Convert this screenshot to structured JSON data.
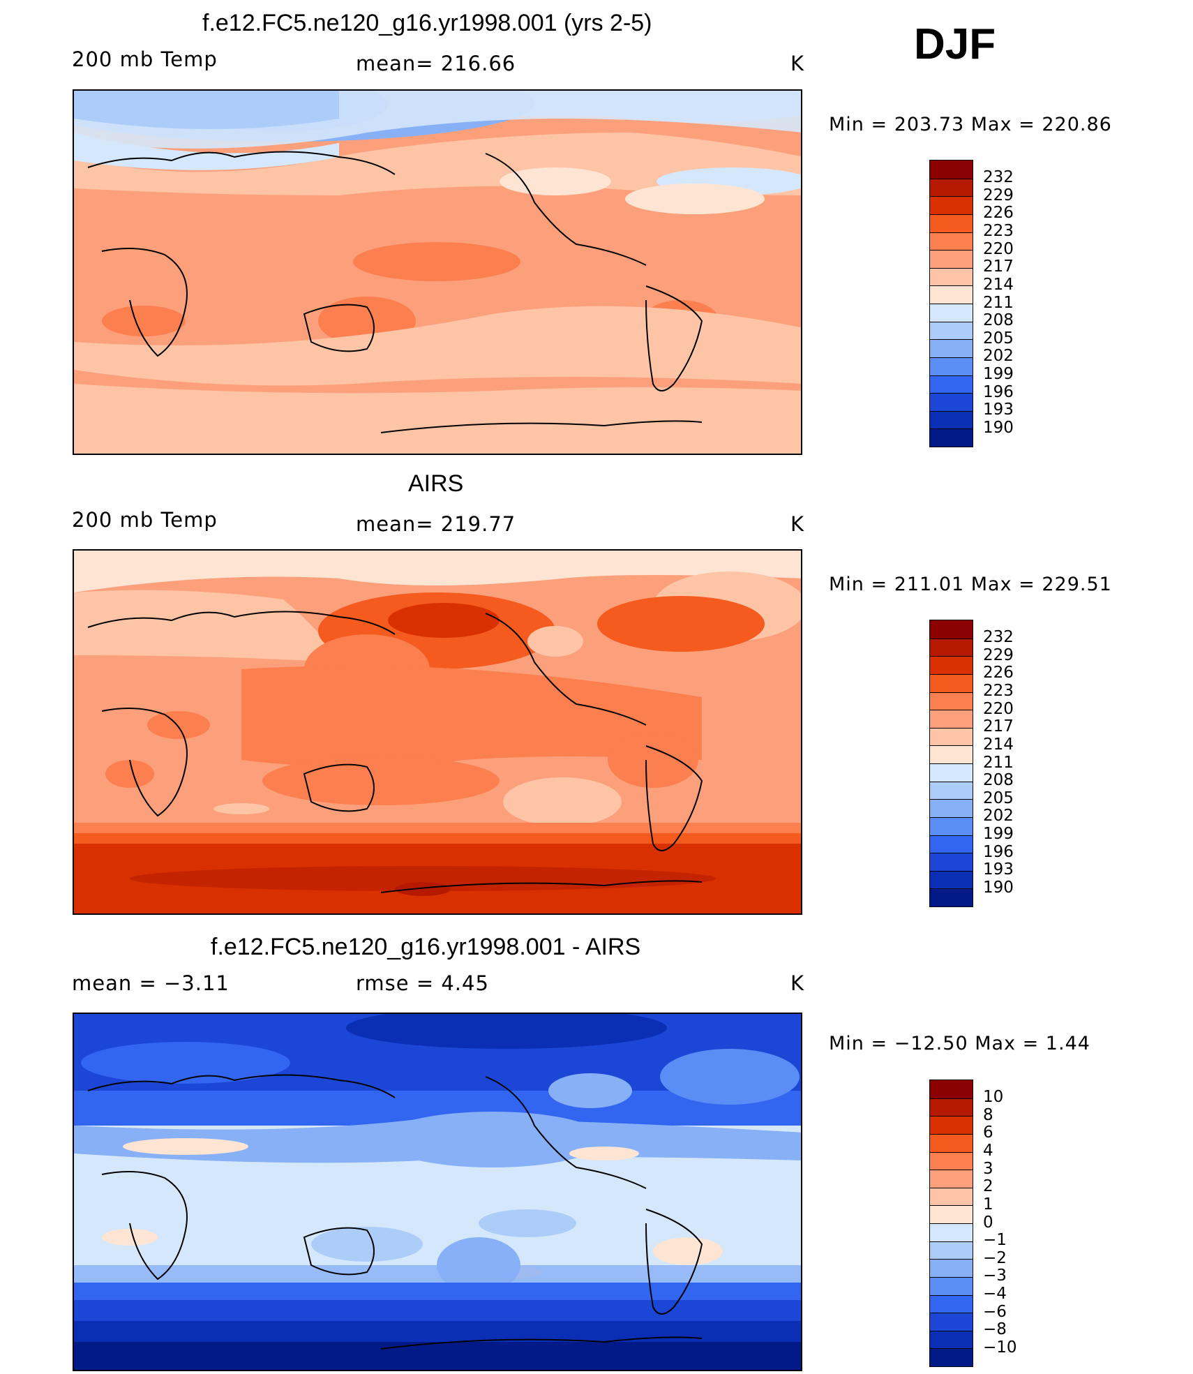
{
  "season": "DJF",
  "panels": [
    {
      "id": "model",
      "title": "f.e12.FC5.ne120_g16.yr1998.001 (yrs 2-5)",
      "left_label": "200 mb Temp",
      "center_label": "mean= 216.66",
      "units": "K",
      "minmax": "Min = 203.73 Max = 220.86",
      "colorbar": {
        "levels": [
          "232",
          "229",
          "226",
          "223",
          "220",
          "217",
          "214",
          "211",
          "208",
          "205",
          "202",
          "199",
          "196",
          "193",
          "190"
        ],
        "colors": [
          "#8b0000",
          "#b51a00",
          "#d93000",
          "#f55a1e",
          "#fb7f4f",
          "#fca07c",
          "#fdc4a6",
          "#fee5d3",
          "#d5e7fb",
          "#adcdf9",
          "#87b0f7",
          "#5b8ef4",
          "#3366f0",
          "#1b46d6",
          "#0a2fb4",
          "#021a88"
        ]
      },
      "regions": [
        "Arctic: 202-208 K",
        "Northern mid-latitudes: 211-214 K",
        "Tropics: 217-220 K",
        "Australia / southern Africa / South America subtropics: 220-223 K",
        "Southern mid-latitudes: 214-217 K",
        "Antarctic: 217-220 K"
      ]
    },
    {
      "id": "obs",
      "title": "AIRS",
      "left_label": "200 mb Temp",
      "center_label": "mean= 219.77",
      "units": "K",
      "minmax": "Min = 211.01 Max = 229.51",
      "colorbar": {
        "levels": [
          "232",
          "229",
          "226",
          "223",
          "220",
          "217",
          "214",
          "211",
          "208",
          "205",
          "202",
          "199",
          "196",
          "193",
          "190"
        ],
        "colors": [
          "#8b0000",
          "#b51a00",
          "#d93000",
          "#f55a1e",
          "#fb7f4f",
          "#fca07c",
          "#fdc4a6",
          "#fee5d3",
          "#d5e7fb",
          "#adcdf9",
          "#87b0f7",
          "#5b8ef4",
          "#3366f0",
          "#1b46d6",
          "#0a2fb4",
          "#021a88"
        ]
      },
      "regions": [
        "Arctic: 211-214 K",
        "North Pacific / NE America jet maximum: 223-226 K",
        "Tropics: 220-223 K",
        "Southern subtropics: 217-220 K",
        "Southern ocean / Antarctic: 226-229 K"
      ]
    },
    {
      "id": "diff",
      "title": "f.e12.FC5.ne120_g16.yr1998.001 - AIRS",
      "left_label": "mean = −3.11",
      "center_label": "rmse = 4.45",
      "units": "K",
      "minmax": "Min = −12.50 Max = 1.44",
      "colorbar": {
        "levels": [
          "10",
          "8",
          "6",
          "4",
          "3",
          "2",
          "1",
          "0",
          "−1",
          "−2",
          "−3",
          "−4",
          "−6",
          "−8",
          "−10"
        ],
        "colors": [
          "#8b0000",
          "#b51a00",
          "#d93000",
          "#f55a1e",
          "#fb7f4f",
          "#fca07c",
          "#fdc4a6",
          "#fee5d3",
          "#d5e7fb",
          "#adcdf9",
          "#87b0f7",
          "#5b8ef4",
          "#3366f0",
          "#1b46d6",
          "#0a2fb4",
          "#021a88"
        ]
      },
      "regions": [
        "Northern high latitudes: −6 to −10 K",
        "Tropics: −1 to 0 K",
        "Southern mid-latitudes: −4 to −8 K",
        "Antarctic: below −10 K"
      ]
    }
  ]
}
